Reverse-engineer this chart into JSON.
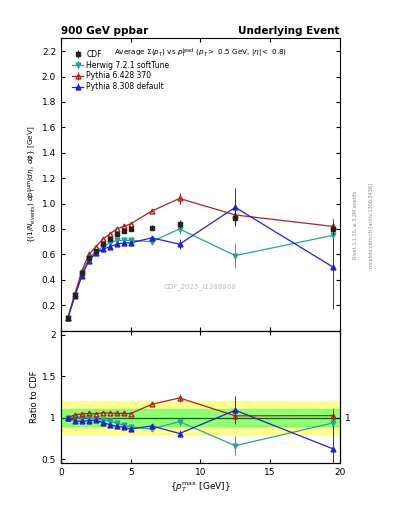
{
  "title_top": "900 GeV ppbar",
  "title_top_right": "Underlying Event",
  "watermark": "CDF_2015_I1388868",
  "rivet_label": "Rivet 3.1.10, ≥ 3.2M events",
  "arxiv_label": "mcplots.cern.ch [arXiv:1306.3436]",
  "cdf_x": [
    0.5,
    1.0,
    1.5,
    2.0,
    2.5,
    3.0,
    3.5,
    4.0,
    4.5,
    5.0,
    6.5,
    8.5,
    12.5,
    19.5
  ],
  "cdf_y": [
    0.1,
    0.28,
    0.45,
    0.57,
    0.63,
    0.68,
    0.72,
    0.76,
    0.78,
    0.8,
    0.81,
    0.84,
    0.89,
    0.8
  ],
  "cdf_yerr": [
    0.01,
    0.01,
    0.01,
    0.01,
    0.01,
    0.01,
    0.01,
    0.01,
    0.01,
    0.01,
    0.02,
    0.03,
    0.06,
    0.05
  ],
  "herwig_x": [
    0.5,
    1.0,
    1.5,
    2.0,
    2.5,
    3.0,
    3.5,
    4.0,
    4.5,
    5.0,
    6.5,
    8.5,
    12.5,
    19.5
  ],
  "herwig_y": [
    0.1,
    0.28,
    0.45,
    0.57,
    0.62,
    0.66,
    0.69,
    0.71,
    0.71,
    0.71,
    0.7,
    0.8,
    0.59,
    0.75
  ],
  "herwig_yerr": [
    0.002,
    0.002,
    0.002,
    0.002,
    0.002,
    0.002,
    0.002,
    0.002,
    0.002,
    0.002,
    0.008,
    0.04,
    0.1,
    0.14
  ],
  "pythia6_x": [
    0.5,
    1.0,
    1.5,
    2.0,
    2.5,
    3.0,
    3.5,
    4.0,
    4.5,
    5.0,
    6.5,
    8.5,
    12.5,
    19.5
  ],
  "pythia6_y": [
    0.1,
    0.29,
    0.47,
    0.6,
    0.66,
    0.72,
    0.76,
    0.8,
    0.82,
    0.84,
    0.94,
    1.04,
    0.91,
    0.82
  ],
  "pythia6_yerr": [
    0.002,
    0.002,
    0.002,
    0.002,
    0.002,
    0.002,
    0.002,
    0.002,
    0.002,
    0.004,
    0.01,
    0.04,
    0.08,
    0.05
  ],
  "pythia8_x": [
    0.5,
    1.0,
    1.5,
    2.0,
    2.5,
    3.0,
    3.5,
    4.0,
    4.5,
    5.0,
    6.5,
    8.5,
    12.5,
    19.5
  ],
  "pythia8_y": [
    0.1,
    0.27,
    0.43,
    0.55,
    0.61,
    0.64,
    0.66,
    0.68,
    0.69,
    0.69,
    0.73,
    0.68,
    0.97,
    0.5
  ],
  "pythia8_yerr": [
    0.002,
    0.002,
    0.002,
    0.002,
    0.002,
    0.002,
    0.002,
    0.002,
    0.002,
    0.004,
    0.01,
    0.04,
    0.15,
    0.33
  ],
  "cdf_color": "#222222",
  "herwig_color": "#2aa198",
  "pythia6_color": "#aa2222",
  "pythia8_color": "#2222cc",
  "ylim_main": [
    0.0,
    2.3
  ],
  "ylim_ratio": [
    0.45,
    2.05
  ],
  "xlim": [
    0,
    20
  ],
  "green_band": [
    0.9,
    1.1
  ],
  "yellow_band": [
    0.8,
    1.2
  ],
  "yticks_main": [
    0.2,
    0.4,
    0.6,
    0.8,
    1.0,
    1.2,
    1.4,
    1.6,
    1.8,
    2.0,
    2.2
  ],
  "yticks_ratio": [
    0.5,
    1.0,
    1.5,
    2.0
  ],
  "xticks": [
    0,
    5,
    10,
    15,
    20
  ]
}
